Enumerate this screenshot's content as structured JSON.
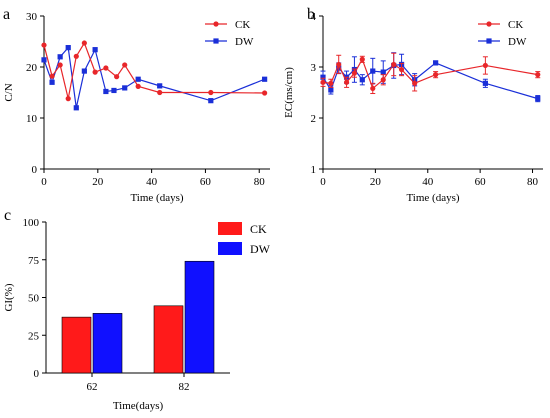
{
  "colors": {
    "ck": "#e8262a",
    "dw": "#1a2fd8",
    "ck_bar": "#ff1a1a",
    "dw_bar": "#1010ff",
    "axis": "#000000"
  },
  "chart_data": [
    {
      "panel_label": "a",
      "type": "line",
      "xlabel": "Time (days)",
      "ylabel": "C/N",
      "xlim": [
        0,
        84
      ],
      "ylim": [
        0,
        30
      ],
      "xticks": [
        "0",
        "20",
        "40",
        "60",
        "80"
      ],
      "yticks": [
        "0",
        "10",
        "20",
        "30"
      ],
      "legend": "top-right",
      "series": [
        {
          "name": "CK",
          "marker": "circle",
          "x": [
            0,
            3,
            6,
            9,
            12,
            15,
            19,
            23,
            27,
            30,
            35,
            43,
            62,
            82
          ],
          "y": [
            24.3,
            18.2,
            20.4,
            13.8,
            22.1,
            24.7,
            19.0,
            19.8,
            18.1,
            20.4,
            16.2,
            15.0,
            15.0,
            14.9
          ]
        },
        {
          "name": "DW",
          "marker": "square",
          "x": [
            0,
            3,
            6,
            9,
            12,
            15,
            19,
            23,
            26,
            30,
            35,
            43,
            62,
            82
          ],
          "y": [
            21.4,
            17.0,
            22.0,
            23.8,
            12.0,
            19.2,
            23.4,
            15.2,
            15.4,
            15.9,
            17.6,
            16.3,
            13.4,
            17.6
          ]
        }
      ]
    },
    {
      "panel_label": "b",
      "type": "line",
      "xlabel": "Time (days)",
      "ylabel": "EC(ms/cm)",
      "xlim": [
        0,
        84
      ],
      "ylim": [
        1,
        4
      ],
      "xticks": [
        "0",
        "20",
        "40",
        "60",
        "80"
      ],
      "yticks": [
        "1",
        "2",
        "3",
        "4"
      ],
      "legend": "top-right",
      "error_bars": true,
      "series": [
        {
          "name": "CK",
          "marker": "circle",
          "x": [
            0,
            3,
            6,
            9,
            12,
            15,
            19,
            23,
            27,
            30,
            35,
            43,
            62,
            82
          ],
          "y": [
            2.7,
            2.68,
            3.05,
            2.7,
            2.88,
            3.15,
            2.58,
            2.75,
            3.05,
            2.95,
            2.68,
            2.85,
            3.03,
            2.85
          ],
          "err": [
            0.08,
            0.08,
            0.18,
            0.1,
            0.08,
            0.06,
            0.1,
            0.1,
            0.22,
            0.12,
            0.15,
            0.06,
            0.17,
            0.06
          ]
        },
        {
          "name": "DW",
          "marker": "square",
          "x": [
            0,
            3,
            6,
            9,
            12,
            15,
            19,
            23,
            27,
            30,
            35,
            43,
            62,
            82
          ],
          "y": [
            2.8,
            2.55,
            2.98,
            2.8,
            2.95,
            2.75,
            2.92,
            2.9,
            3.03,
            3.05,
            2.75,
            3.08,
            2.68,
            2.38
          ],
          "err": [
            0.12,
            0.08,
            0.1,
            0.12,
            0.25,
            0.1,
            0.25,
            0.22,
            0.25,
            0.2,
            0.12,
            0.04,
            0.08,
            0.06
          ]
        }
      ]
    },
    {
      "panel_label": "c",
      "type": "bar",
      "xlabel": "Time(days)",
      "ylabel": "GI(%)",
      "ylim": [
        0,
        100
      ],
      "yticks": [
        "0",
        "25",
        "50",
        "75",
        "100"
      ],
      "categories": [
        "62",
        "82"
      ],
      "legend": "top-right",
      "series": [
        {
          "name": "CK",
          "values": [
            37,
            44.5
          ]
        },
        {
          "name": "DW",
          "values": [
            39.5,
            74
          ]
        }
      ]
    }
  ]
}
